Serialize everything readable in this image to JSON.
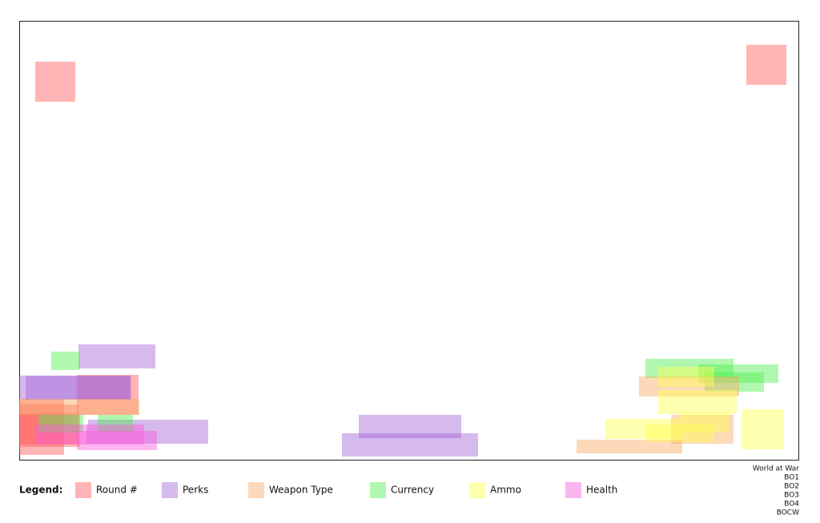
{
  "legend": {
    "title": "Legend:",
    "items": [
      "Round #",
      "Perks",
      "Weapon Type",
      "Currency",
      "Ammo",
      "Health"
    ]
  },
  "games": [
    "World at War",
    "BO1",
    "BO2",
    "BO3",
    "BO4",
    "BOCW"
  ]
}
